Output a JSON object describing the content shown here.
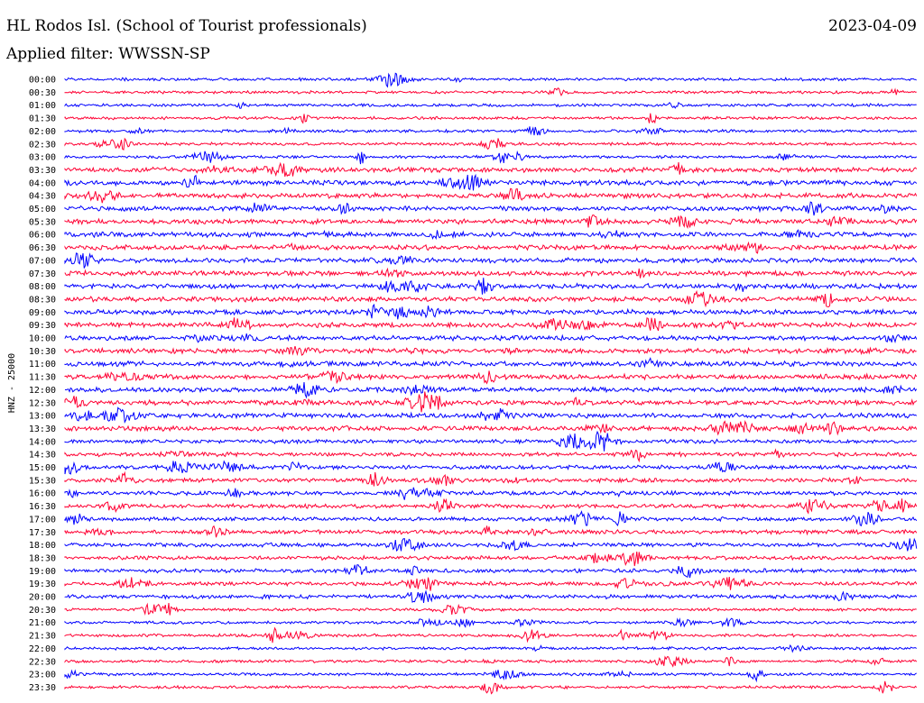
{
  "header": {
    "station": "HL Rodos Isl. (School of Tourist professionals)",
    "date": "2023-04-09",
    "filter": "Applied filter: WWSSN-SP"
  },
  "chart_data": {
    "type": "line",
    "title": "HL Rodos Isl. (School of Tourist professionals)",
    "ylabel": "HNZ - 25000",
    "row_labels": [
      "00:00",
      "00:30",
      "01:00",
      "01:30",
      "02:00",
      "02:30",
      "03:00",
      "03:30",
      "04:00",
      "04:30",
      "05:00",
      "05:30",
      "06:00",
      "06:30",
      "07:00",
      "07:30",
      "08:00",
      "08:30",
      "09:00",
      "09:30",
      "10:00",
      "10:30",
      "11:00",
      "11:30",
      "12:00",
      "12:30",
      "13:00",
      "13:30",
      "14:00",
      "14:30",
      "15:00",
      "15:30",
      "16:00",
      "16:30",
      "17:00",
      "17:30",
      "18:00",
      "18:30",
      "19:00",
      "19:30",
      "20:00",
      "20:30",
      "21:00",
      "21:30",
      "22:00",
      "22:30",
      "23:00",
      "23:30"
    ],
    "colors": [
      "#0000ff",
      "#ff0033"
    ],
    "grid": false,
    "legend": "none"
  }
}
